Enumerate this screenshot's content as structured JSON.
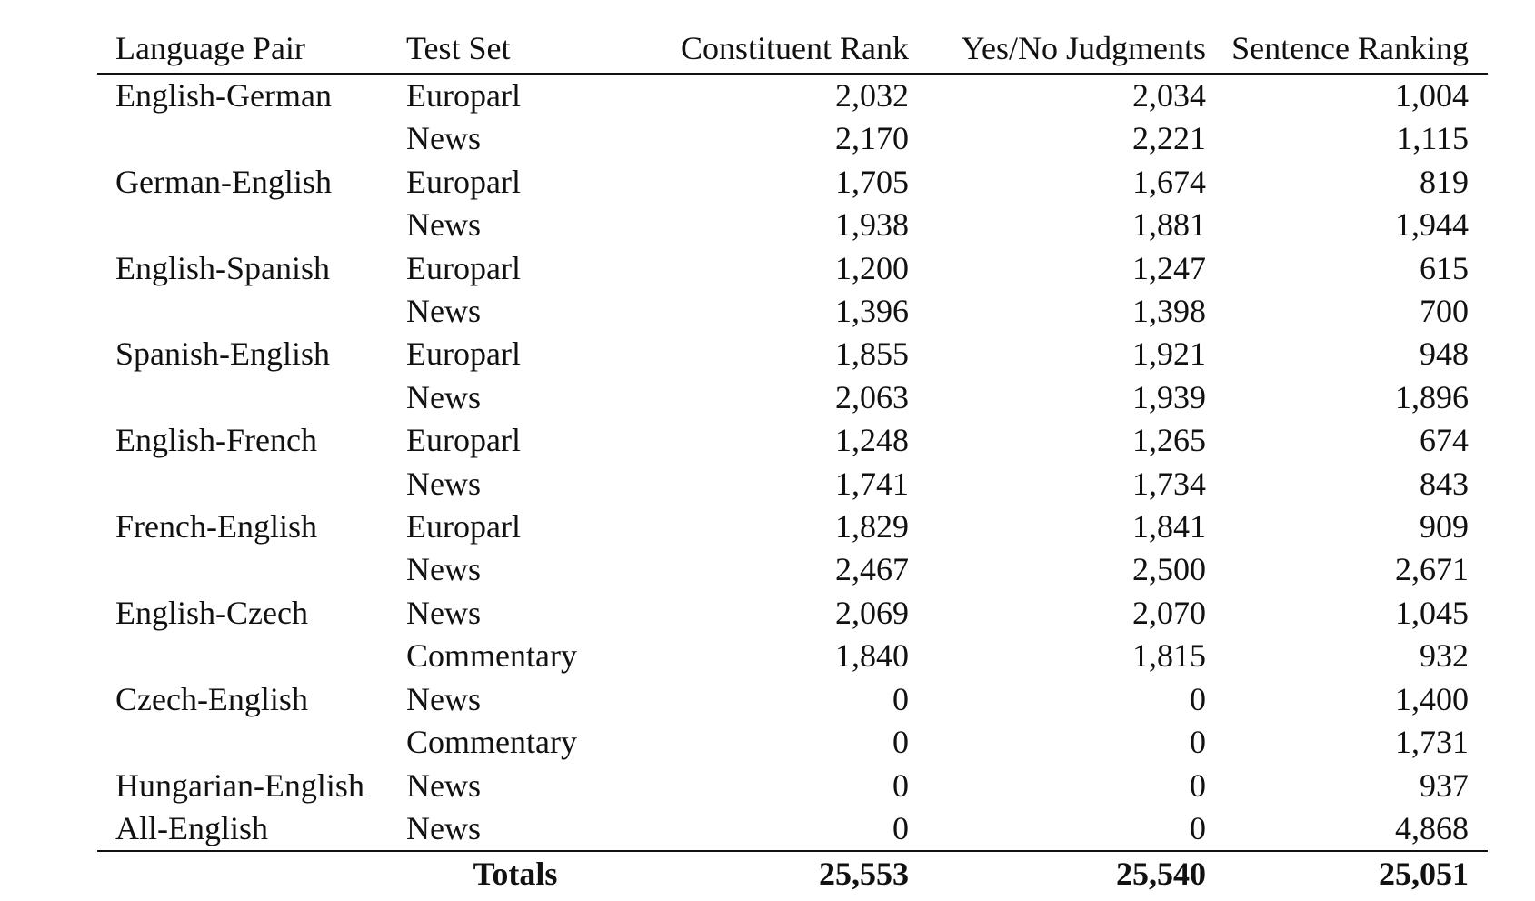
{
  "table": {
    "headers": [
      "Language Pair",
      "Test Set",
      "Constituent Rank",
      "Yes/No Judgments",
      "Sentence Ranking"
    ],
    "rows": [
      [
        "English-German",
        "Europarl",
        "2,032",
        "2,034",
        "1,004"
      ],
      [
        "",
        "News",
        "2,170",
        "2,221",
        "1,115"
      ],
      [
        "German-English",
        "Europarl",
        "1,705",
        "1,674",
        "819"
      ],
      [
        "",
        "News",
        "1,938",
        "1,881",
        "1,944"
      ],
      [
        "English-Spanish",
        "Europarl",
        "1,200",
        "1,247",
        "615"
      ],
      [
        "",
        "News",
        "1,396",
        "1,398",
        "700"
      ],
      [
        "Spanish-English",
        "Europarl",
        "1,855",
        "1,921",
        "948"
      ],
      [
        "",
        "News",
        "2,063",
        "1,939",
        "1,896"
      ],
      [
        "English-French",
        "Europarl",
        "1,248",
        "1,265",
        "674"
      ],
      [
        "",
        "News",
        "1,741",
        "1,734",
        "843"
      ],
      [
        "French-English",
        "Europarl",
        "1,829",
        "1,841",
        "909"
      ],
      [
        "",
        "News",
        "2,467",
        "2,500",
        "2,671"
      ],
      [
        "English-Czech",
        "News",
        "2,069",
        "2,070",
        "1,045"
      ],
      [
        "",
        "Commentary",
        "1,840",
        "1,815",
        "932"
      ],
      [
        "Czech-English",
        "News",
        "0",
        "0",
        "1,400"
      ],
      [
        "",
        "Commentary",
        "0",
        "0",
        "1,731"
      ],
      [
        "Hungarian-English",
        "News",
        "0",
        "0",
        "937"
      ],
      [
        "All-English",
        "News",
        "0",
        "0",
        "4,868"
      ]
    ],
    "totals": {
      "label": "Totals",
      "constituent_rank": "25,553",
      "yes_no_judgments": "25,540",
      "sentence_ranking": "25,051"
    }
  }
}
